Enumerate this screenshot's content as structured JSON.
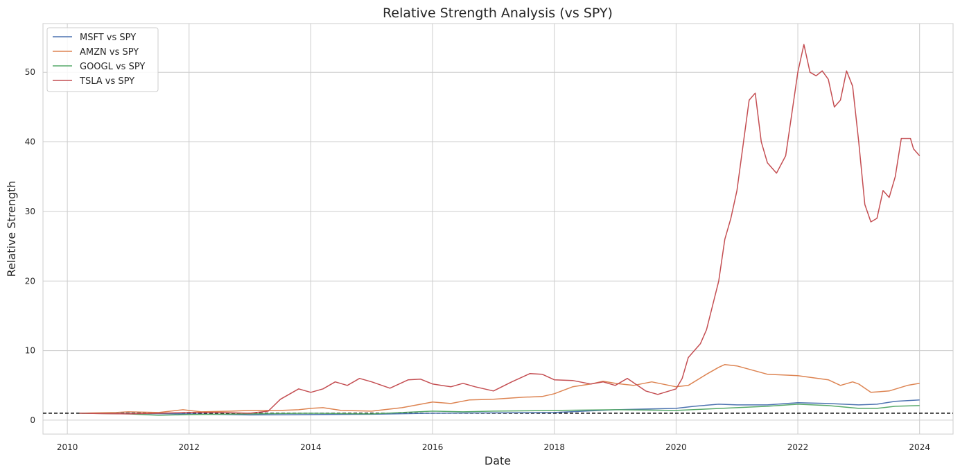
{
  "chart_data": {
    "type": "line",
    "title": "Relative Strength Analysis (vs SPY)",
    "xlabel": "Date",
    "ylabel": "Relative Strength",
    "xlim": [
      2009.6,
      2024.55
    ],
    "ylim": [
      -2,
      57
    ],
    "xticks": [
      2010,
      2012,
      2014,
      2016,
      2018,
      2020,
      2022,
      2024
    ],
    "xtick_labels": [
      "2010",
      "2012",
      "2014",
      "2016",
      "2018",
      "2020",
      "2022",
      "2024"
    ],
    "yticks": [
      0,
      10,
      20,
      30,
      40,
      50
    ],
    "ytick_labels": [
      "0",
      "10",
      "20",
      "30",
      "40",
      "50"
    ],
    "grid": true,
    "legend_position": "top-left",
    "reference_line": {
      "y": 1,
      "style": "dashed",
      "color": "#000000"
    },
    "series": [
      {
        "name": "MSFT vs SPY",
        "color": "#4c72b0",
        "points": [
          [
            2010.2,
            1.0
          ],
          [
            2011.0,
            0.95
          ],
          [
            2012.0,
            0.9
          ],
          [
            2013.0,
            0.75
          ],
          [
            2014.0,
            0.8
          ],
          [
            2015.0,
            0.85
          ],
          [
            2016.0,
            1.0
          ],
          [
            2017.0,
            1.05
          ],
          [
            2018.0,
            1.1
          ],
          [
            2019.0,
            1.5
          ],
          [
            2020.0,
            1.7
          ],
          [
            2020.3,
            2.0
          ],
          [
            2020.7,
            2.3
          ],
          [
            2021.0,
            2.2
          ],
          [
            2021.5,
            2.2
          ],
          [
            2022.0,
            2.5
          ],
          [
            2022.5,
            2.4
          ],
          [
            2023.0,
            2.2
          ],
          [
            2023.3,
            2.3
          ],
          [
            2023.6,
            2.7
          ],
          [
            2024.0,
            2.9
          ]
        ]
      },
      {
        "name": "AMZN vs SPY",
        "color": "#dd8452",
        "points": [
          [
            2010.2,
            1.0
          ],
          [
            2010.8,
            1.1
          ],
          [
            2011.0,
            1.2
          ],
          [
            2011.5,
            1.1
          ],
          [
            2011.9,
            1.5
          ],
          [
            2012.2,
            1.2
          ],
          [
            2012.7,
            1.3
          ],
          [
            2013.0,
            1.4
          ],
          [
            2013.5,
            1.4
          ],
          [
            2013.8,
            1.5
          ],
          [
            2014.0,
            1.7
          ],
          [
            2014.2,
            1.8
          ],
          [
            2014.5,
            1.4
          ],
          [
            2015.0,
            1.3
          ],
          [
            2015.5,
            1.8
          ],
          [
            2016.0,
            2.6
          ],
          [
            2016.3,
            2.4
          ],
          [
            2016.6,
            2.9
          ],
          [
            2017.0,
            3.0
          ],
          [
            2017.5,
            3.3
          ],
          [
            2017.8,
            3.4
          ],
          [
            2018.0,
            3.8
          ],
          [
            2018.3,
            4.8
          ],
          [
            2018.6,
            5.2
          ],
          [
            2018.8,
            5.6
          ],
          [
            2019.0,
            5.3
          ],
          [
            2019.3,
            5.0
          ],
          [
            2019.6,
            5.5
          ],
          [
            2020.0,
            4.8
          ],
          [
            2020.2,
            5.0
          ],
          [
            2020.5,
            6.6
          ],
          [
            2020.7,
            7.6
          ],
          [
            2020.8,
            8.0
          ],
          [
            2021.0,
            7.8
          ],
          [
            2021.5,
            6.6
          ],
          [
            2022.0,
            6.4
          ],
          [
            2022.5,
            5.8
          ],
          [
            2022.7,
            5.0
          ],
          [
            2022.9,
            5.5
          ],
          [
            2023.0,
            5.2
          ],
          [
            2023.2,
            4.0
          ],
          [
            2023.5,
            4.2
          ],
          [
            2023.8,
            5.0
          ],
          [
            2024.0,
            5.3
          ]
        ]
      },
      {
        "name": "GOOGL vs SPY",
        "color": "#55a868",
        "points": [
          [
            2010.2,
            1.0
          ],
          [
            2011.0,
            0.9
          ],
          [
            2011.5,
            0.7
          ],
          [
            2012.0,
            0.8
          ],
          [
            2013.0,
            0.9
          ],
          [
            2014.0,
            1.0
          ],
          [
            2015.0,
            0.9
          ],
          [
            2016.0,
            1.3
          ],
          [
            2016.5,
            1.2
          ],
          [
            2017.0,
            1.3
          ],
          [
            2018.0,
            1.4
          ],
          [
            2019.0,
            1.5
          ],
          [
            2020.0,
            1.4
          ],
          [
            2020.5,
            1.6
          ],
          [
            2021.0,
            1.8
          ],
          [
            2021.5,
            2.0
          ],
          [
            2022.0,
            2.3
          ],
          [
            2022.5,
            2.1
          ],
          [
            2023.0,
            1.7
          ],
          [
            2023.3,
            1.7
          ],
          [
            2023.6,
            2.0
          ],
          [
            2024.0,
            2.1
          ]
        ]
      },
      {
        "name": "TSLA vs SPY",
        "color": "#c44e52",
        "points": [
          [
            2010.2,
            1.0
          ],
          [
            2010.5,
            0.95
          ],
          [
            2011.0,
            0.9
          ],
          [
            2011.5,
            1.0
          ],
          [
            2012.0,
            1.1
          ],
          [
            2012.5,
            1.1
          ],
          [
            2013.0,
            1.0
          ],
          [
            2013.3,
            1.3
          ],
          [
            2013.5,
            3.0
          ],
          [
            2013.8,
            4.5
          ],
          [
            2014.0,
            4.0
          ],
          [
            2014.2,
            4.5
          ],
          [
            2014.4,
            5.5
          ],
          [
            2014.6,
            5.0
          ],
          [
            2014.8,
            6.0
          ],
          [
            2015.0,
            5.5
          ],
          [
            2015.3,
            4.6
          ],
          [
            2015.6,
            5.8
          ],
          [
            2015.8,
            5.9
          ],
          [
            2016.0,
            5.2
          ],
          [
            2016.3,
            4.8
          ],
          [
            2016.5,
            5.3
          ],
          [
            2016.7,
            4.8
          ],
          [
            2017.0,
            4.2
          ],
          [
            2017.3,
            5.5
          ],
          [
            2017.6,
            6.7
          ],
          [
            2017.8,
            6.6
          ],
          [
            2018.0,
            5.8
          ],
          [
            2018.3,
            5.7
          ],
          [
            2018.6,
            5.2
          ],
          [
            2018.8,
            5.5
          ],
          [
            2019.0,
            5.0
          ],
          [
            2019.2,
            6.0
          ],
          [
            2019.5,
            4.2
          ],
          [
            2019.7,
            3.7
          ],
          [
            2020.0,
            4.5
          ],
          [
            2020.1,
            6.0
          ],
          [
            2020.2,
            9.0
          ],
          [
            2020.4,
            11.0
          ],
          [
            2020.5,
            13.0
          ],
          [
            2020.7,
            20.0
          ],
          [
            2020.8,
            26.0
          ],
          [
            2020.9,
            29.0
          ],
          [
            2021.0,
            33.0
          ],
          [
            2021.2,
            46.0
          ],
          [
            2021.3,
            47.0
          ],
          [
            2021.4,
            40.0
          ],
          [
            2021.5,
            37.0
          ],
          [
            2021.65,
            35.5
          ],
          [
            2021.8,
            38.0
          ],
          [
            2021.9,
            44.0
          ],
          [
            2022.0,
            50.0
          ],
          [
            2022.1,
            54.0
          ],
          [
            2022.2,
            50.0
          ],
          [
            2022.3,
            49.5
          ],
          [
            2022.4,
            50.2
          ],
          [
            2022.5,
            49.0
          ],
          [
            2022.6,
            45.0
          ],
          [
            2022.7,
            46.0
          ],
          [
            2022.8,
            50.2
          ],
          [
            2022.9,
            48.0
          ],
          [
            2023.0,
            40.0
          ],
          [
            2023.1,
            31.0
          ],
          [
            2023.2,
            28.5
          ],
          [
            2023.3,
            29.0
          ],
          [
            2023.4,
            33.0
          ],
          [
            2023.5,
            32.0
          ],
          [
            2023.6,
            35.0
          ],
          [
            2023.7,
            40.5
          ],
          [
            2023.85,
            40.5
          ],
          [
            2023.9,
            39.0
          ],
          [
            2024.0,
            38.0
          ]
        ]
      }
    ]
  }
}
